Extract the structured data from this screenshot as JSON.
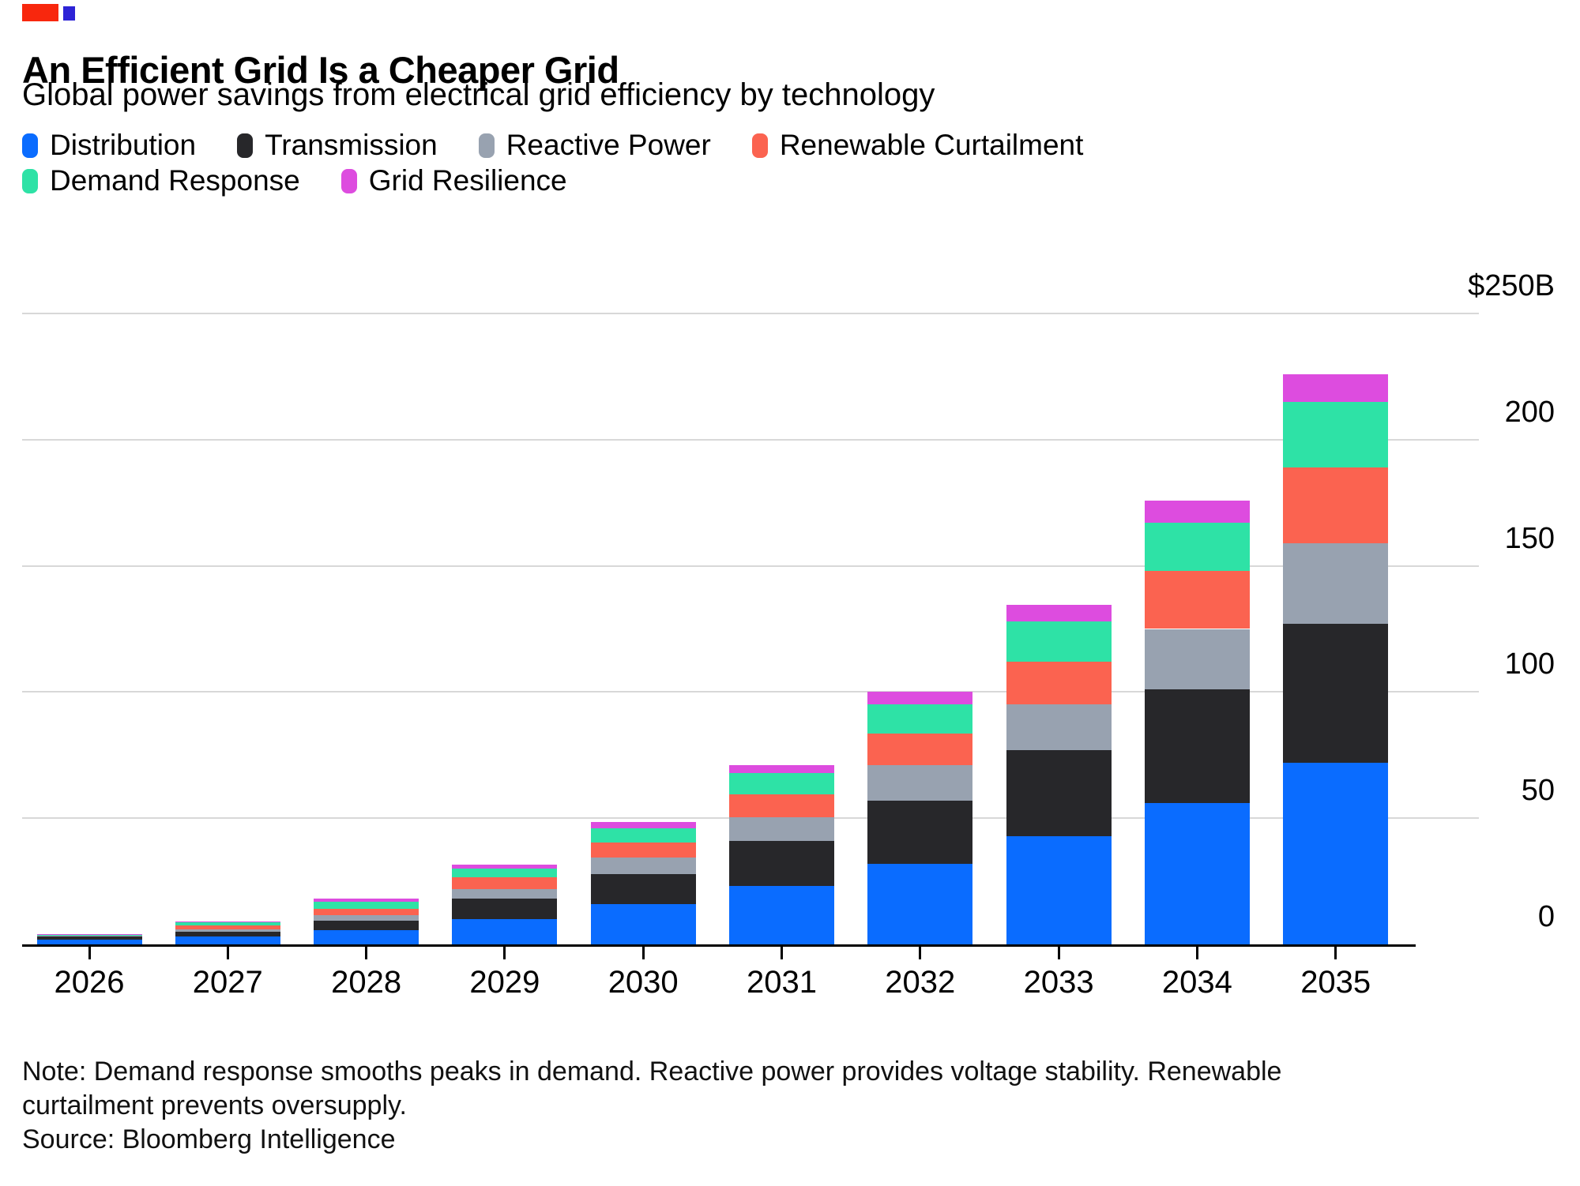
{
  "header": {
    "title": "An Efficient Grid Is a Cheaper Grid",
    "subtitle": "Global power savings from electrical grid efficiency by technology",
    "decoration": {
      "red": "#f8270d",
      "blue": "#2d23d6"
    }
  },
  "legend": {
    "rows": [
      [
        "Distribution",
        "Transmission",
        "Reactive Power",
        "Renewable Curtailment"
      ],
      [
        "Demand Response",
        "Grid Resilience"
      ]
    ]
  },
  "chart_data": {
    "type": "bar",
    "stacked": true,
    "title": "An Efficient Grid Is a Cheaper Grid",
    "subtitle": "Global power savings from electrical grid efficiency by technology",
    "categories": [
      "2026",
      "2027",
      "2028",
      "2029",
      "2030",
      "2031",
      "2032",
      "2033",
      "2034",
      "2035"
    ],
    "series": [
      {
        "name": "Distribution",
        "color": "#0a6cff",
        "values": [
          2,
          3,
          5.5,
          10,
          16,
          23,
          32,
          43,
          56,
          72
        ]
      },
      {
        "name": "Transmission",
        "color": "#27272a",
        "values": [
          1,
          2,
          4,
          8,
          12,
          18,
          25,
          34,
          45,
          55
        ]
      },
      {
        "name": "Reactive Power",
        "color": "#98a2b0",
        "values": [
          0.6,
          1,
          2,
          4,
          6.5,
          9.5,
          14,
          18,
          24,
          32
        ]
      },
      {
        "name": "Renewable Curtailment",
        "color": "#fb6350",
        "values": [
          0.2,
          1.5,
          2.5,
          4.5,
          6,
          9,
          12.5,
          17,
          23,
          30
        ]
      },
      {
        "name": "Demand Response",
        "color": "#2ee2a6",
        "values": [
          0.1,
          1.2,
          3,
          3.5,
          5.5,
          8.5,
          11.5,
          16,
          19,
          26
        ]
      },
      {
        "name": "Grid Resilience",
        "color": "#dd4cdf",
        "values": [
          0.1,
          0.3,
          1,
          1.5,
          2.5,
          3,
          5,
          6.5,
          9,
          11
        ]
      }
    ],
    "y_unit": "$B",
    "ylim": [
      0,
      250
    ],
    "y_ticks": [
      {
        "label": "$250B",
        "value": 250
      },
      {
        "label": "200",
        "value": 200
      },
      {
        "label": "150",
        "value": 150
      },
      {
        "label": "100",
        "value": 100
      },
      {
        "label": "50",
        "value": 50
      },
      {
        "label": "0",
        "value": 0
      }
    ],
    "grid": "horizontal",
    "legend_position": "top"
  },
  "footer": {
    "note_line1": "Note: Demand response smooths peaks in demand. Reactive power provides voltage stability. Renewable",
    "note_line2": "curtailment prevents oversupply.",
    "source": "Source: Bloomberg Intelligence"
  }
}
